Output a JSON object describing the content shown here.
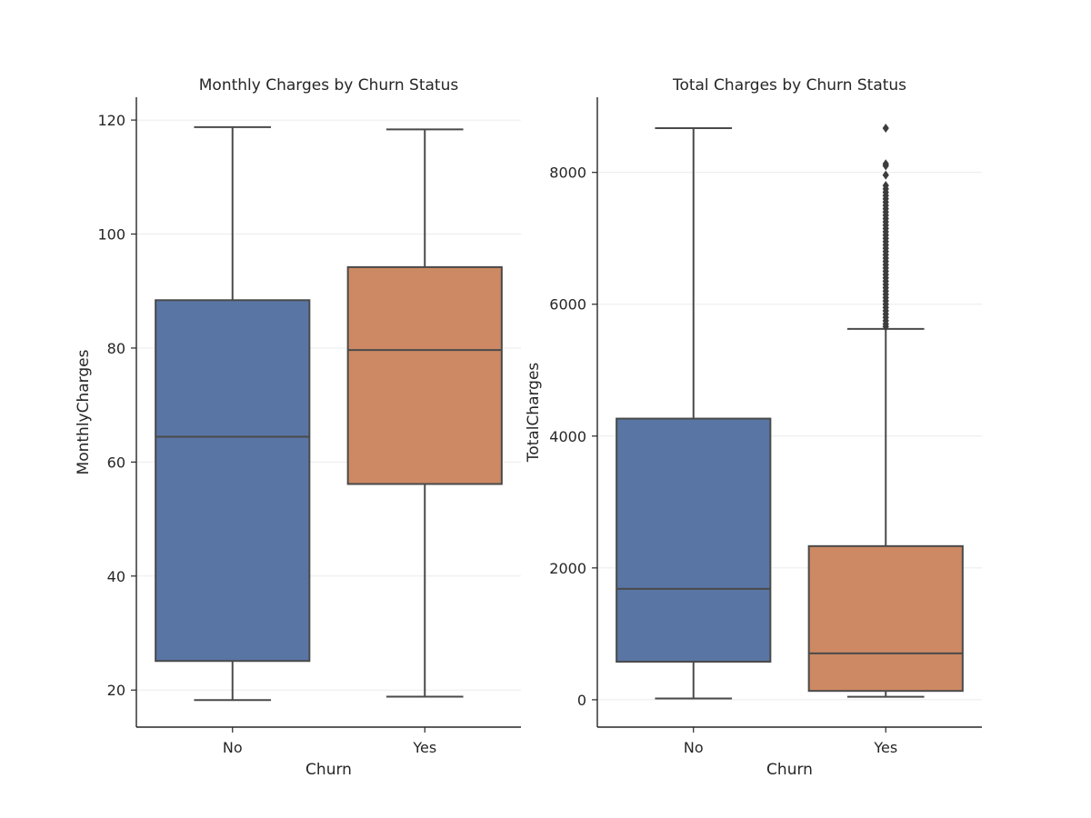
{
  "chart_data": [
    {
      "type": "box",
      "title": "Monthly Charges by Churn Status",
      "xlabel": "Churn",
      "ylabel": "MonthlyCharges",
      "ylim": [
        13.5,
        124
      ],
      "yticks": [
        20,
        40,
        60,
        80,
        100,
        120
      ],
      "grid": true,
      "categories": [
        "No",
        "Yes"
      ],
      "boxes": [
        {
          "category": "No",
          "color": "#5975a4",
          "whisker_low": 18.25,
          "q1": 25.1,
          "median": 64.45,
          "q3": 88.4,
          "whisker_high": 118.75,
          "outliers": []
        },
        {
          "category": "Yes",
          "color": "#cc8963",
          "whisker_low": 18.85,
          "q1": 56.15,
          "median": 79.65,
          "q3": 94.2,
          "whisker_high": 118.35,
          "outliers": []
        }
      ]
    },
    {
      "type": "box",
      "title": "Total Charges by Churn Status",
      "xlabel": "Churn",
      "ylabel": "TotalCharges",
      "ylim": [
        -415,
        9140
      ],
      "yticks": [
        0,
        2000,
        4000,
        6000,
        8000
      ],
      "grid": true,
      "categories": [
        "No",
        "Yes"
      ],
      "boxes": [
        {
          "category": "No",
          "color": "#5975a4",
          "whisker_low": 18.8,
          "q1": 577,
          "median": 1683,
          "q3": 4265,
          "whisker_high": 8672,
          "outliers": []
        },
        {
          "category": "Yes",
          "color": "#cc8963",
          "whisker_low": 45,
          "q1": 134,
          "median": 704,
          "q3": 2331,
          "whisker_high": 5625,
          "outliers": [
            5660,
            5700,
            5750,
            5800,
            5850,
            5900,
            5950,
            6000,
            6050,
            6100,
            6150,
            6200,
            6250,
            6300,
            6350,
            6400,
            6450,
            6500,
            6550,
            6600,
            6650,
            6700,
            6750,
            6800,
            6850,
            6900,
            6950,
            7000,
            7050,
            7100,
            7150,
            7200,
            7250,
            7300,
            7350,
            7400,
            7450,
            7500,
            7550,
            7600,
            7650,
            7700,
            7750,
            7800,
            7960,
            8100,
            8130,
            8672
          ]
        }
      ]
    }
  ]
}
